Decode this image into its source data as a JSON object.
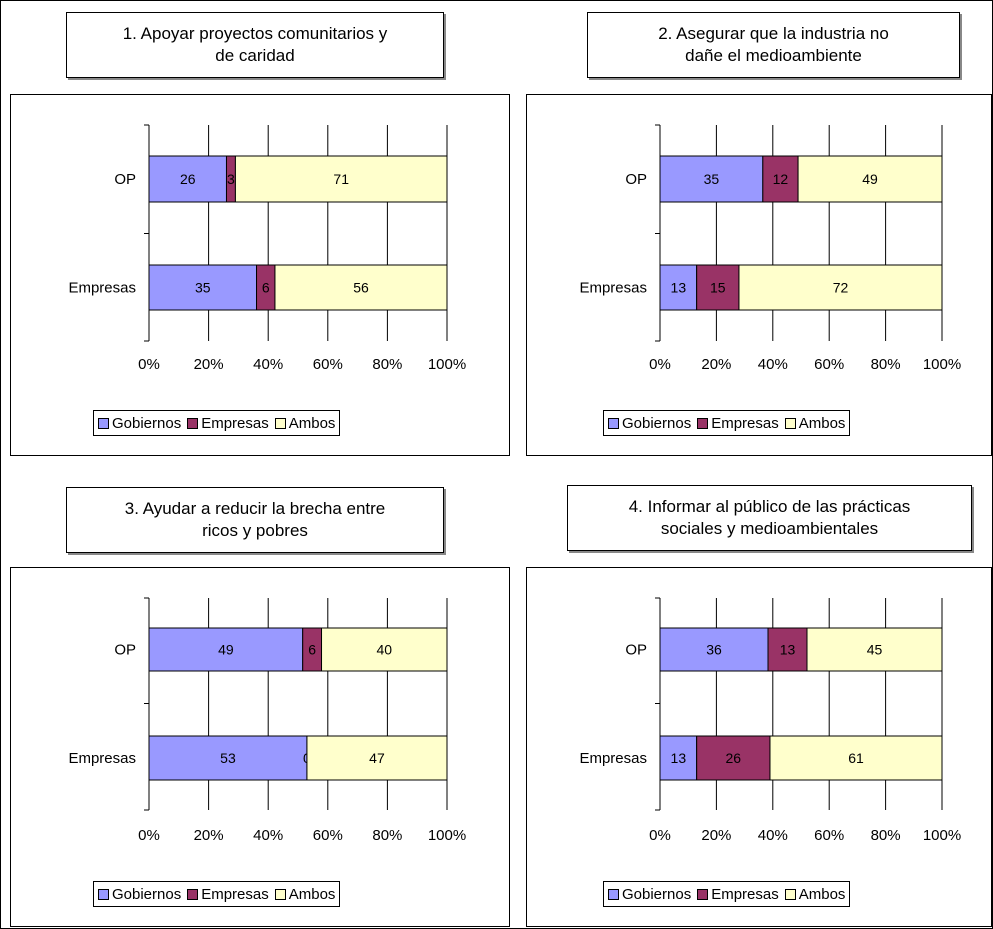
{
  "colors": {
    "gobiernos": "#9999ff",
    "empresas": "#993366",
    "ambos": "#ffffcc"
  },
  "legend": [
    "Gobiernos",
    "Empresas",
    "Ambos"
  ],
  "legend_alt": [
    "Gobiernos",
    "Empresas",
    "Ambos"
  ],
  "chart_data": [
    {
      "type": "bar",
      "orientation": "horizontal",
      "stacked": "percent",
      "title": "1. Apoyar proyectos comunitarios y de caridad",
      "categories": [
        "OP",
        "Empresas"
      ],
      "series": [
        {
          "name": "Gobiernos",
          "values": [
            26,
            35
          ]
        },
        {
          "name": "Empresas",
          "values": [
            3,
            6
          ]
        },
        {
          "name": "Ambos",
          "values": [
            71,
            56
          ]
        }
      ],
      "data_labels": [
        [
          "26",
          "3",
          "71"
        ],
        [
          "35",
          "6",
          "56"
        ]
      ],
      "xticks": [
        "0%",
        "20%",
        "40%",
        "60%",
        "80%",
        "100%"
      ],
      "xlim": [
        0,
        100
      ],
      "legend_position": "bottom"
    },
    {
      "type": "bar",
      "orientation": "horizontal",
      "stacked": "percent",
      "title": "2. Asegurar que la industria no dañe el medioambiente",
      "categories": [
        "OP",
        "Empresas"
      ],
      "series": [
        {
          "name": "Gobiernos",
          "values": [
            35,
            13
          ]
        },
        {
          "name": "Empresas",
          "values": [
            12,
            15
          ]
        },
        {
          "name": "Ambos",
          "values": [
            49,
            72
          ]
        }
      ],
      "data_labels": [
        [
          "35",
          "12",
          "49"
        ],
        [
          "13",
          "15",
          "72"
        ]
      ],
      "xticks": [
        "0%",
        "20%",
        "40%",
        "60%",
        "80%",
        "100%"
      ],
      "xlim": [
        0,
        100
      ],
      "legend_position": "bottom"
    },
    {
      "type": "bar",
      "orientation": "horizontal",
      "stacked": "percent",
      "title": "3. Ayudar a reducir la brecha entre ricos y pobres",
      "categories": [
        "OP",
        "Empresas"
      ],
      "series": [
        {
          "name": "Gobiernos",
          "values": [
            49,
            53
          ]
        },
        {
          "name": "Empresas",
          "values": [
            6,
            0
          ]
        },
        {
          "name": "Ambos",
          "values": [
            40,
            47
          ]
        }
      ],
      "data_labels": [
        [
          "49",
          "6",
          "40"
        ],
        [
          "53",
          "0",
          "47"
        ]
      ],
      "xticks": [
        "0%",
        "20%",
        "40%",
        "60%",
        "80%",
        "100%"
      ],
      "xlim": [
        0,
        100
      ],
      "legend_position": "bottom"
    },
    {
      "type": "bar",
      "orientation": "horizontal",
      "stacked": "percent",
      "title": "4. Informar al público de las prácticas sociales y medioambientales",
      "categories": [
        "OP",
        "Empresas"
      ],
      "series": [
        {
          "name": "Gobiernos",
          "values": [
            36,
            13
          ]
        },
        {
          "name": "Empresas",
          "values": [
            13,
            26
          ]
        },
        {
          "name": "Ambos",
          "values": [
            45,
            61
          ]
        }
      ],
      "data_labels": [
        [
          "36",
          "13",
          "45"
        ],
        [
          "13",
          "26",
          "61"
        ]
      ],
      "xticks": [
        "0%",
        "20%",
        "40%",
        "60%",
        "80%",
        "100%"
      ],
      "xlim": [
        0,
        100
      ],
      "legend_position": "bottom"
    }
  ],
  "titles_display": [
    "1. Apoyar proyectos comunitarios y\nde caridad",
    "2. Asegurar que la industria no\ndañe el medioambiente",
    "3. Ayudar a reducir la brecha entre\nricos y pobres",
    "4. Informar al público de las prácticas\nsociales y medioambientales"
  ]
}
